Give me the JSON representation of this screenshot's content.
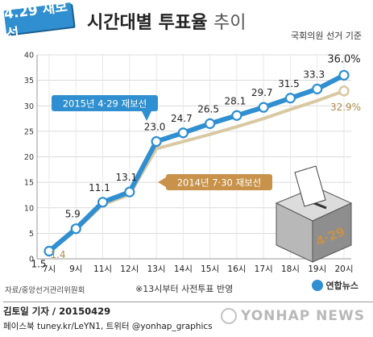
{
  "header": {
    "badge": "4.29 재보선",
    "title_bold": "시간대별 투표율",
    "title_light": "추이",
    "subtitle": "국회의원 선거 기준"
  },
  "chart_data": {
    "type": "line",
    "title": "시간대별 투표율 추이",
    "categories": [
      "7시",
      "9시",
      "11시",
      "12시",
      "13시",
      "14시",
      "15시",
      "16시",
      "17시",
      "18시",
      "19시",
      "20시"
    ],
    "series": [
      {
        "name": "2015년 4·29 재보선",
        "color": "#2f8fd0",
        "values": [
          1.5,
          5.9,
          11.1,
          13.1,
          23.0,
          24.7,
          26.5,
          28.1,
          29.7,
          31.5,
          33.3,
          36.0
        ],
        "labels": [
          "1.5",
          "5.9",
          "11.1",
          "13.1",
          "23.0",
          "24.7",
          "26.5",
          "28.1",
          "29.7",
          "31.5",
          "33.3",
          "36.0%"
        ]
      },
      {
        "name": "2014년 7·30 재보선",
        "color": "#d9c9a3",
        "values": [
          1.4,
          5.6,
          10.6,
          12.6,
          21.6,
          23.0,
          24.4,
          25.9,
          27.5,
          29.3,
          31.0,
          32.9
        ],
        "labels": [
          "1.4",
          "",
          "",
          "",
          "",
          "",
          "",
          "",
          "",
          "",
          "",
          "32.9%"
        ]
      }
    ],
    "ylim": [
      0,
      40
    ],
    "yticks": [
      0,
      5,
      10,
      15,
      20,
      25,
      30,
      35,
      40
    ],
    "grid": true,
    "annotations": [
      "※13시부터 사전투표 반영"
    ]
  },
  "footer": {
    "source": "자료/중앙선거관리위원회",
    "note": "※13시부터 사전투표 반영",
    "brand": "연합뉴스",
    "credit": "김토일 기자 / 20150429",
    "social": "페이스북 tuney.kr/LeYN1, 트위터 @yonhap_graphics",
    "watermark": "YONHAP NEWS"
  },
  "ballot_box": {
    "label": "4·29"
  },
  "colors": {
    "accent": "#2f8fd0",
    "secondary": "#d9c9a3",
    "secondary_text": "#b08a4c",
    "callout_2015": "#2f8fd0",
    "callout_2014": "#c8924a"
  }
}
